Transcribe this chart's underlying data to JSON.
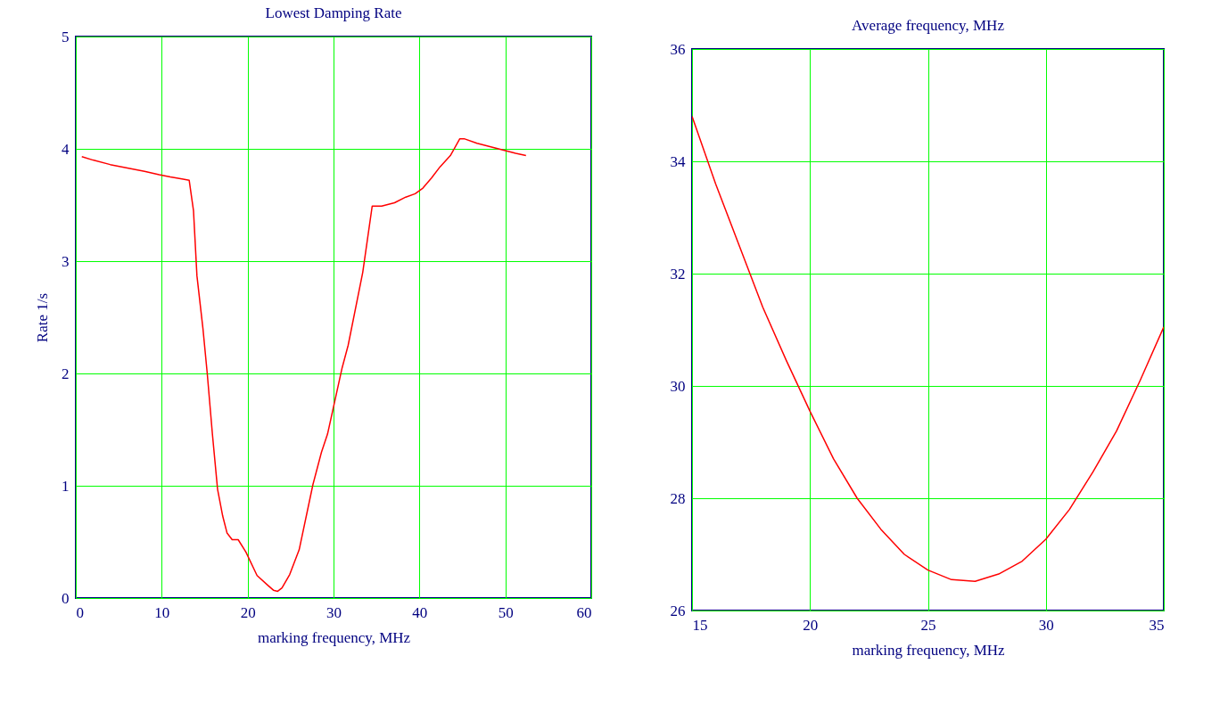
{
  "chart_data": [
    {
      "type": "line",
      "title": "Lowest Damping Rate",
      "xlabel": "marking frequency, MHz",
      "ylabel": "Rate 1/s",
      "xlim": [
        0,
        60
      ],
      "ylim": [
        0,
        5
      ],
      "xticks": [
        0,
        10,
        20,
        30,
        40,
        50,
        60
      ],
      "yticks": [
        0,
        1,
        2,
        3,
        4,
        5
      ],
      "grid": true,
      "marker": "none",
      "line_style": "solid",
      "x": [
        0.7,
        2,
        4,
        6,
        8,
        9.7,
        11,
        12.5,
        13.2,
        13.7,
        14.1,
        14.8,
        15.3,
        15.9,
        16.5,
        17.1,
        17.6,
        18.2,
        18.9,
        19.8,
        21.1,
        22.4,
        23,
        23.5,
        24,
        24.9,
        26,
        27.6,
        28.6,
        29.3,
        31,
        31.7,
        33.4,
        34.5,
        35.6,
        37.1,
        38.4,
        39.5,
        40.4,
        41.4,
        42.4,
        43.6,
        44.7,
        45.2,
        46.7,
        48.2,
        49.7,
        51.2,
        52.4
      ],
      "series": [
        {
          "color": "#ff0000",
          "values": [
            3.93,
            3.9,
            3.86,
            3.83,
            3.8,
            3.77,
            3.75,
            3.73,
            3.72,
            3.45,
            2.87,
            2.4,
            2.0,
            1.46,
            0.97,
            0.73,
            0.58,
            0.52,
            0.52,
            0.41,
            0.2,
            0.11,
            0.07,
            0.06,
            0.09,
            0.21,
            0.43,
            1.01,
            1.3,
            1.46,
            2.05,
            2.25,
            2.9,
            3.49,
            3.49,
            3.52,
            3.57,
            3.6,
            3.65,
            3.74,
            3.84,
            3.94,
            4.09,
            4.09,
            4.05,
            4.02,
            3.99,
            3.96,
            3.94
          ]
        }
      ]
    },
    {
      "type": "line",
      "title": "Average frequency, MHz",
      "xlabel": "marking frequency, MHz",
      "xlim": [
        15,
        35
      ],
      "ylim": [
        26,
        36
      ],
      "xticks": [
        15,
        20,
        25,
        30,
        35
      ],
      "yticks": [
        26,
        28,
        30,
        32,
        34,
        36
      ],
      "grid": true,
      "marker": "none",
      "line_style": "solid",
      "x": [
        15,
        16,
        17,
        18,
        19,
        20,
        21,
        22,
        23,
        24,
        25,
        26,
        27,
        28,
        29,
        30,
        31,
        32,
        33,
        34,
        35
      ],
      "series": [
        {
          "color": "#ff0000",
          "values": [
            34.8,
            33.6,
            32.5,
            31.4,
            30.45,
            29.55,
            28.7,
            28.0,
            27.45,
            27.0,
            26.72,
            26.55,
            26.52,
            26.65,
            26.88,
            27.27,
            27.8,
            28.47,
            29.2,
            30.1,
            31.05
          ]
        }
      ]
    }
  ]
}
